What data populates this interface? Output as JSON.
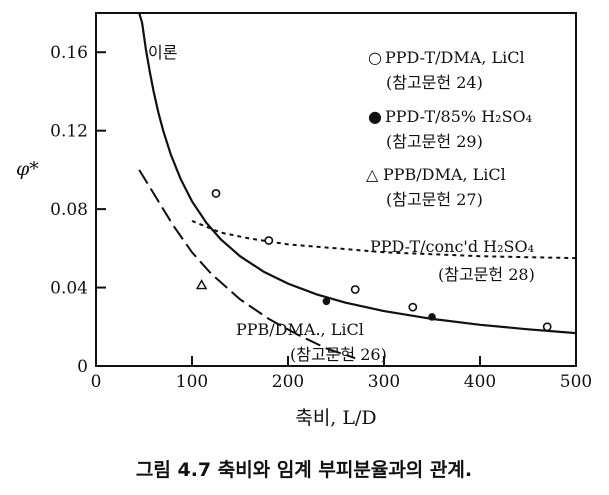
{
  "chart_data": {
    "type": "scatter",
    "xlabel": "축비, L/D",
    "ylabel": "φ*",
    "xlim": [
      0,
      500
    ],
    "ylim": [
      0,
      0.18
    ],
    "xticks": [
      "0",
      "100",
      "200",
      "300",
      "400",
      "500"
    ],
    "yticks": [
      "0",
      "0.04",
      "0.08",
      "0.12",
      "0.16"
    ],
    "xtick_values": [
      0,
      100,
      200,
      300,
      400,
      500
    ],
    "ytick_values": [
      0,
      0.04,
      0.08,
      0.12,
      0.16
    ],
    "grid": false,
    "legend": [
      {
        "marker": "○",
        "label": "PPD-T/DMA, LiCl",
        "ref": "(참고문헌 24)"
      },
      {
        "marker": "●",
        "label": "PPD-T/85% H₂SO₄",
        "ref": "(참고문헌 29)"
      },
      {
        "marker": "△",
        "label": "PPB/DMA, LiCl",
        "ref": "(참고문헌 27)"
      }
    ],
    "series": [
      {
        "name": "PPD-T/DMA, LiCl",
        "marker": "open-circle",
        "x": [
          125,
          180,
          270,
          330,
          470
        ],
        "y": [
          0.088,
          0.064,
          0.039,
          0.03,
          0.02
        ]
      },
      {
        "name": "PPD-T/85% H₂SO₄",
        "marker": "filled-circle",
        "x": [
          240,
          350
        ],
        "y": [
          0.033,
          0.025
        ]
      },
      {
        "name": "PPB/DMA, LiCl",
        "marker": "triangle",
        "x": [
          110
        ],
        "y": [
          0.041
        ]
      }
    ],
    "curves": [
      {
        "name": "이론",
        "style": "solid",
        "x": [
          45,
          48,
          52,
          56,
          60,
          65,
          70,
          78,
          88,
          100,
          115,
          130,
          150,
          175,
          200,
          230,
          260,
          300,
          350,
          400,
          450,
          500
        ],
        "y": [
          0.1865,
          0.175,
          0.1615,
          0.15,
          0.14,
          0.1292,
          0.12,
          0.1077,
          0.0955,
          0.084,
          0.073,
          0.0646,
          0.056,
          0.048,
          0.042,
          0.0365,
          0.0323,
          0.028,
          0.024,
          0.021,
          0.0187,
          0.0168
        ]
      },
      {
        "name": "PPD-T/conc'd H₂SO₄",
        "style": "short-dash",
        "x": [
          100,
          130,
          160,
          200,
          250,
          300,
          350,
          400,
          450,
          500
        ],
        "y": [
          0.074,
          0.068,
          0.065,
          0.062,
          0.06,
          0.058,
          0.057,
          0.056,
          0.0555,
          0.055
        ]
      },
      {
        "name": "PPB/DMA, LiCl",
        "style": "long-dash",
        "x": [
          45,
          60,
          80,
          100,
          120,
          150,
          180,
          210,
          240,
          270
        ],
        "y": [
          0.1,
          0.088,
          0.072,
          0.058,
          0.047,
          0.034,
          0.024,
          0.016,
          0.009,
          0.004
        ]
      }
    ],
    "annotations": [
      {
        "text": "이론"
      },
      {
        "text": "PPD-T/conc'd H₂SO₄",
        "ref": "(참고문헌 28)"
      },
      {
        "text": "PPB/DMA., LiCl",
        "ref": "(참고문헌 26)"
      }
    ]
  },
  "caption": "그림 4.7  축비와 임계 부피분율과의 관계."
}
